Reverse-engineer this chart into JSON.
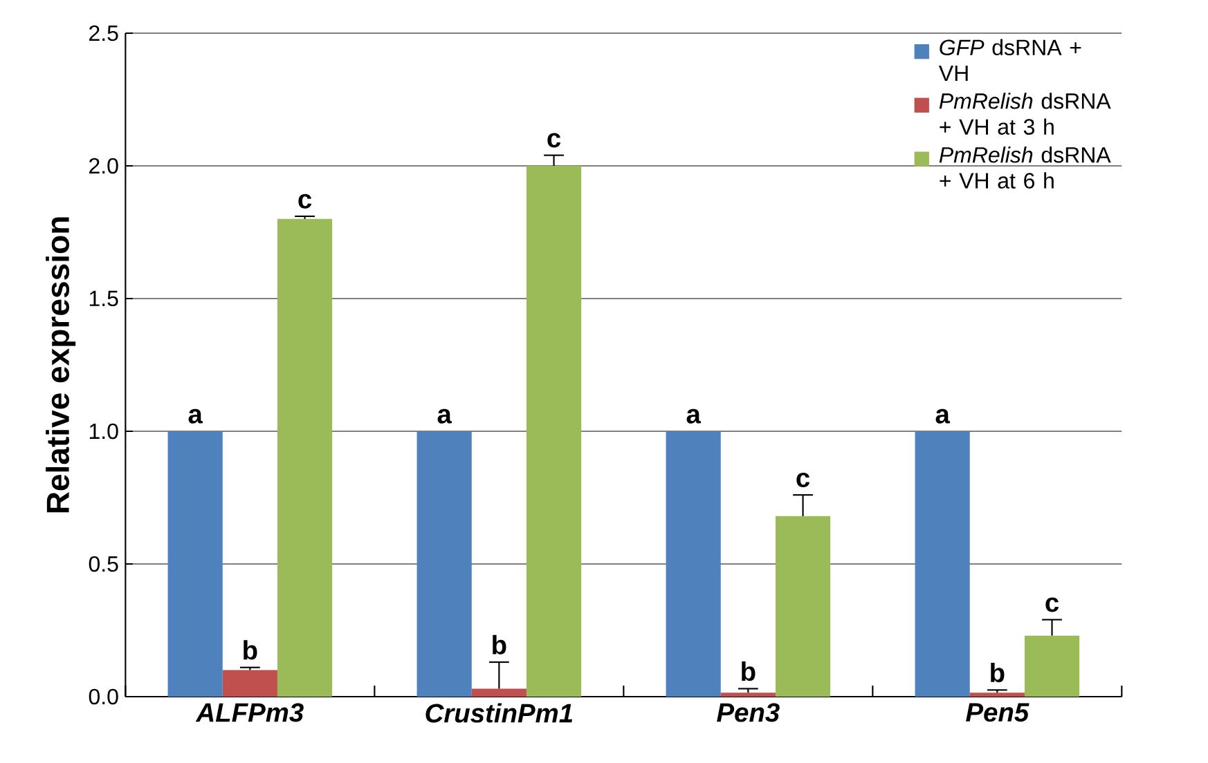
{
  "chart_data": {
    "type": "bar",
    "ylabel": "Relative expression",
    "categories": [
      "ALFPm3",
      "CrustinPm1",
      "Pen3",
      "Pen5"
    ],
    "series": [
      {
        "name": "*GFP* dsRNA + VH",
        "color": "#4f81bd",
        "values": [
          1.0,
          1.0,
          1.0,
          1.0
        ],
        "errors": [
          null,
          null,
          null,
          null
        ],
        "value_labels": [
          "a",
          "a",
          "a",
          "a"
        ]
      },
      {
        "name": "*PmRelish* dsRNA + VH at 3 h",
        "color": "#c0504d",
        "values": [
          0.1,
          0.03,
          0.015,
          0.015
        ],
        "errors": [
          0.01,
          0.1,
          0.015,
          0.01
        ],
        "value_labels": [
          "b",
          "b",
          "b",
          "b"
        ]
      },
      {
        "name": "*PmRelish* dsRNA + VH at 6 h",
        "color": "#9bbb59",
        "values": [
          1.8,
          2.0,
          0.68,
          0.23
        ],
        "errors": [
          0.01,
          0.04,
          0.08,
          0.06
        ],
        "value_labels": [
          "c",
          "c",
          "c",
          "c"
        ]
      }
    ],
    "ylim": [
      0,
      2.5
    ],
    "yticks": [
      {
        "value": 0,
        "label": "0.0"
      },
      {
        "value": 0.5,
        "label": "0.5"
      },
      {
        "value": 1,
        "label": "1.0"
      },
      {
        "value": 1.5,
        "label": "1.5"
      },
      {
        "value": 2,
        "label": "2.0"
      },
      {
        "value": 2.5,
        "label": "2.5"
      }
    ],
    "grid": "y",
    "legend": "top right"
  }
}
